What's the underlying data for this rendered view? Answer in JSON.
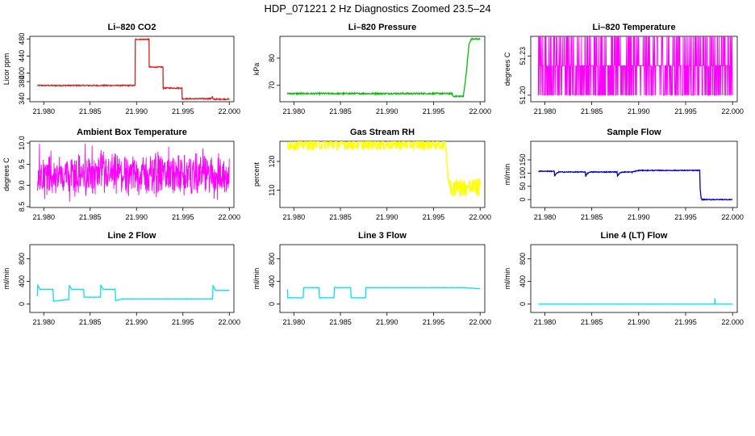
{
  "figure_title": "HDP_071221  2 Hz Diagnostics Zoomed 23.5–24",
  "colors": {
    "red": "#e41a1c",
    "green": "#00c000",
    "magenta": "#ff00ff",
    "yellow": "#ffff00",
    "blue": "#0000cc",
    "cyan": "#00e5ee"
  },
  "chart_data": [
    {
      "type": "line",
      "title": "Li–820 CO2",
      "ylabel": "Licor ppm",
      "color": "#e41a1c",
      "noise": 1.2,
      "xlim": [
        21.9785,
        22.0005
      ],
      "ylim": [
        333,
        486
      ],
      "xticks": [
        21.98,
        21.985,
        21.99,
        21.995,
        22.0
      ],
      "xticklabels": [
        "21.980",
        "21.985",
        "21.990",
        "21.995",
        "22.000"
      ],
      "yticks": [
        340,
        380,
        400,
        440,
        480
      ],
      "yticklabels": [
        "340",
        "380",
        "400",
        "440",
        "480"
      ],
      "x": [
        21.9793,
        21.98985,
        21.98987,
        21.99135,
        21.99137,
        21.99285,
        21.99287,
        21.9949,
        21.99492,
        21.998,
        21.9982,
        21.99822,
        22.0
      ],
      "y": [
        371,
        371,
        479,
        479,
        414,
        414,
        365,
        365,
        340,
        340,
        345,
        339,
        339
      ]
    },
    {
      "type": "line",
      "title": "Li–820 Pressure",
      "ylabel": "kPa",
      "color": "#00c000",
      "noise": 0.25,
      "xlim": [
        21.9785,
        22.0005
      ],
      "ylim": [
        64,
        88
      ],
      "xticks": [
        21.98,
        21.985,
        21.99,
        21.995,
        22.0
      ],
      "xticklabels": [
        "21.980",
        "21.985",
        "21.990",
        "21.995",
        "22.000"
      ],
      "yticks": [
        70,
        80
      ],
      "yticklabels": [
        "70",
        "80"
      ],
      "x": [
        21.9793,
        21.997,
        21.9971,
        21.9982,
        21.9985,
        21.9988,
        21.99905,
        22.0
      ],
      "y": [
        67,
        67,
        66,
        66,
        74,
        85,
        87,
        87
      ]
    },
    {
      "type": "line",
      "title": "Li–820 Temperature",
      "ylabel": "degrees C",
      "color": "#ff00ff",
      "style": "quantized",
      "xlim": [
        21.9785,
        22.0005
      ],
      "ylim": [
        51.195,
        51.245
      ],
      "xticks": [
        21.98,
        21.985,
        21.99,
        21.995,
        22.0
      ],
      "xticklabels": [
        "21.980",
        "21.985",
        "21.990",
        "21.995",
        "22.000"
      ],
      "yticks": [
        51.2,
        51.23
      ],
      "yticklabels": [
        "51.20",
        "51.23"
      ],
      "x": [
        21.9793,
        22.0
      ],
      "levels": [
        51.2,
        51.2225,
        51.245
      ]
    },
    {
      "type": "line",
      "title": "Ambient Box Temperature",
      "ylabel": "degrees C",
      "color": "#ff00ff",
      "style": "noise",
      "xlim": [
        21.9785,
        22.0005
      ],
      "ylim": [
        8.48,
        10.04
      ],
      "xticks": [
        21.98,
        21.985,
        21.99,
        21.995,
        22.0
      ],
      "xticklabels": [
        "21.980",
        "21.985",
        "21.990",
        "21.995",
        "22.000"
      ],
      "yticks": [
        8.5,
        9.0,
        9.5,
        10.0
      ],
      "yticklabels": [
        "8.5",
        "9.0",
        "9.5",
        "10.0"
      ],
      "x": [
        21.9793,
        22.0
      ],
      "mean": 9.25,
      "band": [
        8.55,
        10.0
      ]
    },
    {
      "type": "line",
      "title": "Gas Stream RH",
      "ylabel": "percent",
      "color": "#ffff00",
      "noise": 2.0,
      "xlim": [
        21.9785,
        22.0005
      ],
      "ylim": [
        104,
        127
      ],
      "xticks": [
        21.98,
        21.985,
        21.99,
        21.995,
        22.0
      ],
      "xticklabels": [
        "21.980",
        "21.985",
        "21.990",
        "21.995",
        "22.000"
      ],
      "yticks": [
        110,
        120
      ],
      "yticklabels": [
        "110",
        "120"
      ],
      "x": [
        21.9793,
        21.9963,
        21.99655,
        21.99665,
        21.9969,
        22.0
      ],
      "y": [
        126,
        126,
        116,
        113,
        111,
        111
      ]
    },
    {
      "type": "line",
      "title": "Sample Flow",
      "ylabel": "ml/min",
      "color": "#0000cc",
      "noise": 1.5,
      "xlim": [
        21.9785,
        22.0005
      ],
      "ylim": [
        -30,
        220
      ],
      "xticks": [
        21.98,
        21.985,
        21.99,
        21.995,
        22.0
      ],
      "xticklabels": [
        "21.980",
        "21.985",
        "21.990",
        "21.995",
        "22.000"
      ],
      "yticks": [
        0,
        50,
        100,
        150
      ],
      "yticklabels": [
        "0",
        "50",
        "100",
        "150"
      ],
      "x": [
        21.9793,
        21.981,
        21.98105,
        21.9812,
        21.9815,
        21.9843,
        21.98435,
        21.9845,
        21.9848,
        21.9877,
        21.98775,
        21.9879,
        21.9882,
        21.9893,
        21.99,
        21.9965,
        21.99655,
        21.99665,
        21.99675,
        22.0
      ],
      "y": [
        107,
        107,
        88,
        98,
        104,
        104,
        88,
        98,
        104,
        104,
        88,
        98,
        104,
        104,
        110,
        110,
        40,
        5,
        0,
        0
      ]
    },
    {
      "type": "line",
      "title": "Line 2 Flow",
      "ylabel": "ml/min",
      "color": "#00e5ee",
      "noise": 2,
      "xlim": [
        21.9785,
        22.0005
      ],
      "ylim": [
        -150,
        1050
      ],
      "xticks": [
        21.98,
        21.985,
        21.99,
        21.995,
        22.0
      ],
      "xticklabels": [
        "21.980",
        "21.985",
        "21.990",
        "21.995",
        "22.000"
      ],
      "yticks": [
        0,
        400,
        800
      ],
      "yticklabels": [
        "0",
        "400",
        "800"
      ],
      "x": [
        21.9793,
        21.97935,
        21.9796,
        21.981,
        21.98105,
        21.9827,
        21.98275,
        21.983,
        21.9843,
        21.98435,
        21.9861,
        21.98615,
        21.9864,
        21.9877,
        21.98775,
        21.9885,
        21.9982,
        21.99825,
        21.9985,
        22.0
      ],
      "y": [
        140,
        330,
        260,
        260,
        50,
        80,
        330,
        260,
        260,
        120,
        120,
        330,
        260,
        260,
        60,
        90,
        90,
        330,
        240,
        240
      ]
    },
    {
      "type": "line",
      "title": "Line 3 Flow",
      "ylabel": "ml/min",
      "color": "#00e5ee",
      "noise": 2,
      "xlim": [
        21.9785,
        22.0005
      ],
      "ylim": [
        -150,
        1050
      ],
      "xticks": [
        21.98,
        21.985,
        21.99,
        21.995,
        22.0
      ],
      "xticklabels": [
        "21.980",
        "21.985",
        "21.990",
        "21.995",
        "22.000"
      ],
      "yticks": [
        0,
        400,
        800
      ],
      "yticklabels": [
        "0",
        "400",
        "800"
      ],
      "x": [
        21.9793,
        21.97935,
        21.9795,
        21.981,
        21.98105,
        21.9827,
        21.98275,
        21.9843,
        21.98435,
        21.9861,
        21.98615,
        21.9877,
        21.98775,
        21.9982,
        22.0
      ],
      "y": [
        260,
        110,
        110,
        110,
        290,
        290,
        110,
        110,
        290,
        290,
        110,
        110,
        290,
        290,
        270
      ]
    },
    {
      "type": "line",
      "title": "Line 4 (LT) Flow",
      "ylabel": "ml/min",
      "color": "#00e5ee",
      "noise": 1,
      "xlim": [
        21.9785,
        22.0005
      ],
      "ylim": [
        -150,
        1050
      ],
      "xticks": [
        21.98,
        21.985,
        21.99,
        21.995,
        22.0
      ],
      "xticklabels": [
        "21.980",
        "21.985",
        "21.990",
        "21.995",
        "22.000"
      ],
      "yticks": [
        0,
        400,
        800
      ],
      "yticklabels": [
        "0",
        "400",
        "800"
      ],
      "x": [
        21.9793,
        21.9981,
        21.99812,
        21.99816,
        21.9982,
        22.0
      ],
      "y": [
        0,
        0,
        100,
        0,
        0,
        0
      ]
    }
  ]
}
